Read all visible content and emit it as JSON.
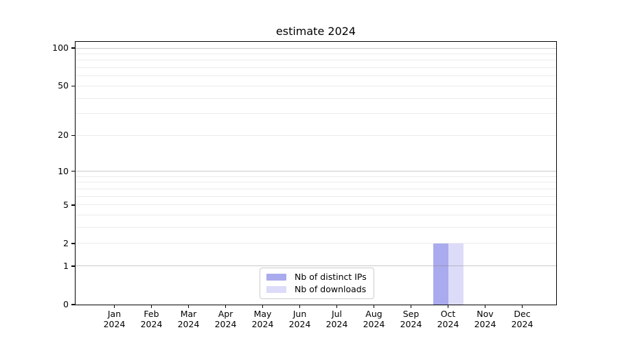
{
  "figure": {
    "background": "#ffffff",
    "text_color": "#000000"
  },
  "chart_data": {
    "type": "bar",
    "title": "estimate 2024",
    "x_axis": {
      "months": [
        "Jan",
        "Feb",
        "Mar",
        "Apr",
        "May",
        "Jun",
        "Jul",
        "Aug",
        "Sep",
        "Oct",
        "Nov",
        "Dec"
      ],
      "year": "2024"
    },
    "y_axis": {
      "scale": "log1p",
      "ticks": [
        0,
        1,
        2,
        5,
        10,
        20,
        50,
        100
      ],
      "max": 112,
      "major_gridlines": [
        1,
        10,
        100
      ],
      "minor_gridlines": [
        2,
        3,
        4,
        5,
        6,
        7,
        8,
        9,
        20,
        30,
        40,
        50,
        60,
        70,
        80,
        90
      ]
    },
    "series": [
      {
        "name": "Nb of distinct IPs",
        "color": "#aaaaee",
        "values": [
          0,
          0,
          0,
          0,
          0,
          0,
          0,
          0,
          0,
          2,
          0,
          0
        ]
      },
      {
        "name": "Nb of downloads",
        "color": "#dcdcf8",
        "values": [
          0,
          0,
          0,
          0,
          0,
          0,
          0,
          0,
          0,
          2,
          0,
          0
        ]
      }
    ],
    "legend": {
      "position": "lower center",
      "border_color": "#cccccc"
    },
    "grid": {
      "minor_color": "#ebebeb",
      "major_color": "#c4c4c4"
    }
  }
}
